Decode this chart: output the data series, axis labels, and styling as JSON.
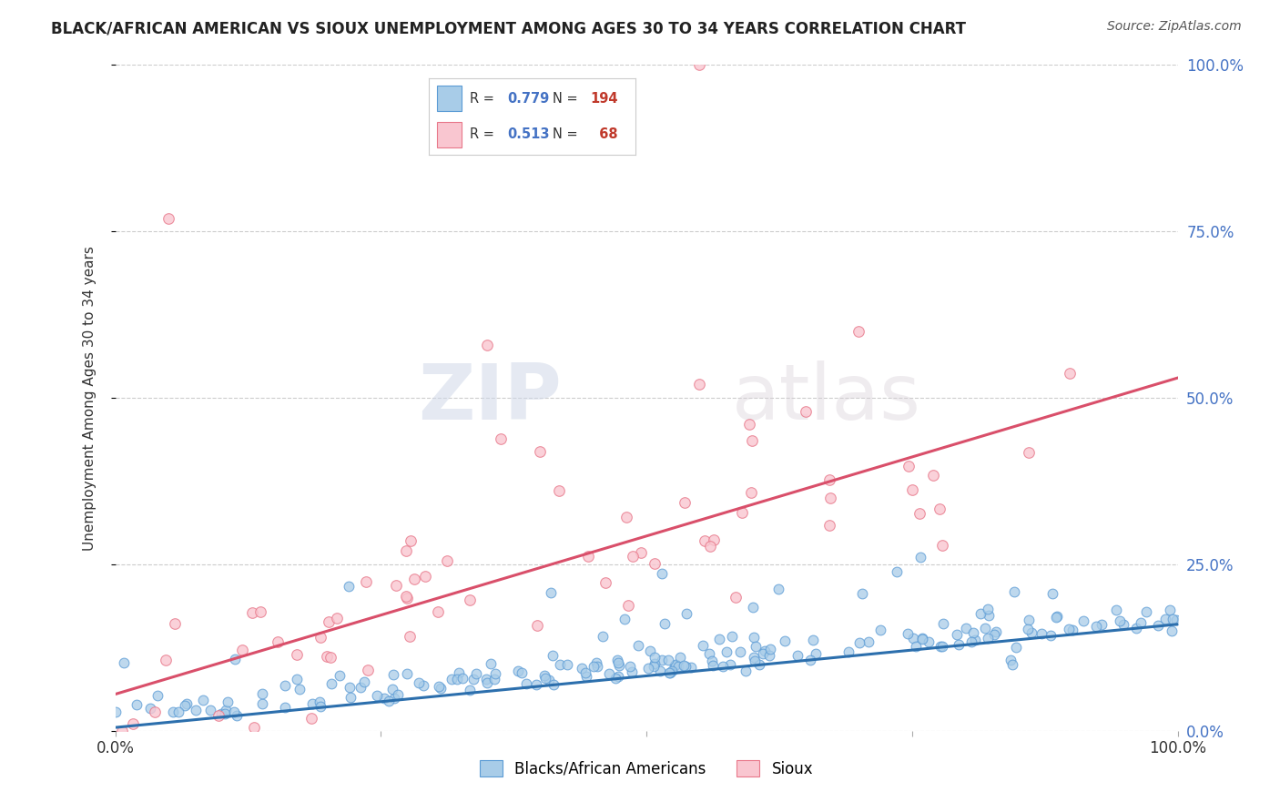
{
  "title": "BLACK/AFRICAN AMERICAN VS SIOUX UNEMPLOYMENT AMONG AGES 30 TO 34 YEARS CORRELATION CHART",
  "source": "Source: ZipAtlas.com",
  "ylabel": "Unemployment Among Ages 30 to 34 years",
  "ytick_labels": [
    "0.0%",
    "25.0%",
    "50.0%",
    "75.0%",
    "100.0%"
  ],
  "ytick_values": [
    0.0,
    0.25,
    0.5,
    0.75,
    1.0
  ],
  "blue_R": 0.779,
  "blue_N": 194,
  "pink_R": 0.513,
  "pink_N": 68,
  "blue_color": "#a8cce8",
  "pink_color": "#f9c6d0",
  "blue_edge_color": "#5b9bd5",
  "pink_edge_color": "#e8788a",
  "blue_line_color": "#2c6fad",
  "pink_line_color": "#d94f6a",
  "legend_blue_label": "Blacks/African Americans",
  "legend_pink_label": "Sioux",
  "watermark_zip": "ZIP",
  "watermark_atlas": "atlas",
  "background_color": "#ffffff",
  "grid_color": "#cccccc",
  "xlim": [
    0.0,
    1.0
  ],
  "ylim": [
    0.0,
    1.0
  ],
  "blue_slope": 0.155,
  "blue_intercept": 0.005,
  "pink_slope": 0.475,
  "pink_intercept": 0.055,
  "title_color": "#222222",
  "source_color": "#555555",
  "axis_label_color": "#4472c4",
  "ylabel_color": "#333333",
  "legend_R_color": "#4472c4",
  "legend_N_color": "#c0392b"
}
